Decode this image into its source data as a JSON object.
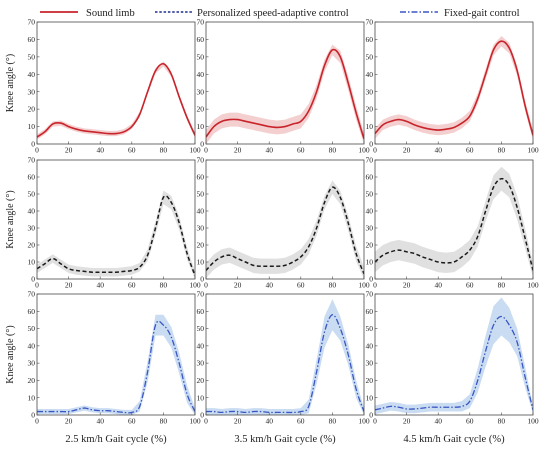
{
  "legend": {
    "sound": "Sound limb",
    "personalized": "Personalized speed-adaptive control",
    "fixed": "Fixed-gait control"
  },
  "colors": {
    "sound_line": "#c8242b",
    "sound_band": "#f4cfcf",
    "personalized_line": "#1a1a1a",
    "personalized_band": "#e0e0e0",
    "personalized_legend": "#1d2d8f",
    "fixed_line": "#3a56c4",
    "fixed_band": "#c9dcf2",
    "frame": "#4a4a4a"
  },
  "ylabel": "Knee angle (°)",
  "col_labels": [
    "2.5 km/h  Gait cycle (%)",
    "3.5 km/h  Gait cycle (%)",
    "4.5 km/h  Gait cycle (%)"
  ],
  "x_ticks": [
    "0",
    "20",
    "40",
    "60",
    "80",
    "100"
  ],
  "y_ticks": [
    "0",
    "10",
    "20",
    "30",
    "40",
    "50",
    "60",
    "70"
  ],
  "chart_data": [
    {
      "type": "line",
      "row": "sound",
      "speed": "2.5 km/h",
      "xlim": [
        0,
        100
      ],
      "ylim": [
        0,
        70
      ],
      "x": [
        0,
        5,
        10,
        15,
        20,
        25,
        30,
        35,
        40,
        45,
        50,
        55,
        60,
        65,
        70,
        75,
        80,
        85,
        90,
        95,
        100
      ],
      "y": [
        4,
        7,
        11.5,
        12,
        10,
        8.5,
        7.5,
        7,
        6.5,
        6,
        6,
        7,
        10,
        17,
        30,
        42,
        46,
        40,
        27,
        15,
        5
      ],
      "sd": [
        1.5,
        1.5,
        1.5,
        1.5,
        1.5,
        1.5,
        1.5,
        1.5,
        1.5,
        1.5,
        1.5,
        1.5,
        1.5,
        1.5,
        1.5,
        1.5,
        1.5,
        1.5,
        1.5,
        1.5,
        1.5
      ]
    },
    {
      "type": "line",
      "row": "sound",
      "speed": "3.5 km/h",
      "xlim": [
        0,
        100
      ],
      "ylim": [
        0,
        70
      ],
      "x": [
        0,
        5,
        10,
        15,
        20,
        25,
        30,
        35,
        40,
        45,
        50,
        55,
        60,
        65,
        70,
        75,
        80,
        85,
        90,
        95,
        100
      ],
      "y": [
        4,
        10,
        13,
        14,
        14,
        13,
        12,
        11,
        10,
        9.5,
        10,
        11.5,
        13,
        19,
        30,
        45,
        54,
        50,
        35,
        18,
        3
      ],
      "sd": [
        4,
        4,
        4,
        4,
        4,
        4,
        4,
        4,
        4,
        4,
        4,
        4,
        4,
        4,
        4,
        3.5,
        3,
        3.5,
        4,
        4,
        3
      ]
    },
    {
      "type": "line",
      "row": "sound",
      "speed": "4.5 km/h",
      "xlim": [
        0,
        100
      ],
      "ylim": [
        0,
        70
      ],
      "x": [
        0,
        5,
        10,
        15,
        20,
        25,
        30,
        35,
        40,
        45,
        50,
        55,
        60,
        65,
        70,
        75,
        80,
        85,
        90,
        95,
        100
      ],
      "y": [
        6,
        11,
        13,
        14,
        13,
        11,
        9.5,
        8.5,
        8,
        8.5,
        9.5,
        12,
        16,
        26,
        40,
        54,
        59,
        55,
        42,
        22,
        5
      ],
      "sd": [
        3,
        3,
        3,
        3,
        3,
        3,
        3,
        3,
        3,
        3,
        3,
        3,
        3,
        3,
        3,
        3,
        3,
        3,
        3,
        3,
        3
      ]
    },
    {
      "type": "line",
      "row": "personalized",
      "speed": "2.5 km/h",
      "xlim": [
        0,
        100
      ],
      "ylim": [
        0,
        70
      ],
      "x": [
        0,
        5,
        10,
        15,
        20,
        25,
        30,
        35,
        40,
        45,
        50,
        55,
        60,
        65,
        70,
        75,
        80,
        85,
        90,
        95,
        100
      ],
      "y": [
        6,
        9,
        12,
        9,
        6,
        5,
        4.5,
        4,
        4,
        4,
        4,
        4.5,
        5,
        7,
        14,
        30,
        48,
        45,
        33,
        15,
        2
      ],
      "sd": [
        2.5,
        2.5,
        2.5,
        2.5,
        2.5,
        2.5,
        2.5,
        2.5,
        2.5,
        2.5,
        2.5,
        2.5,
        2.5,
        2.5,
        3.5,
        4,
        4,
        4,
        4,
        3.5,
        2.5
      ]
    },
    {
      "type": "line",
      "row": "personalized",
      "speed": "3.5 km/h",
      "xlim": [
        0,
        100
      ],
      "ylim": [
        0,
        70
      ],
      "x": [
        0,
        5,
        10,
        15,
        20,
        25,
        30,
        35,
        40,
        45,
        50,
        55,
        60,
        65,
        70,
        75,
        80,
        85,
        90,
        95,
        100
      ],
      "y": [
        5,
        10,
        13,
        14,
        12,
        10,
        8,
        7.5,
        7.5,
        7.5,
        8,
        10,
        13,
        19,
        30,
        45,
        54,
        48,
        33,
        15,
        3
      ],
      "sd": [
        4.5,
        4.5,
        4.5,
        4.5,
        4.5,
        4.5,
        4.5,
        4.5,
        4.5,
        4.5,
        4.5,
        4.5,
        4.5,
        4.5,
        4.5,
        4,
        4,
        4,
        4.5,
        4.5,
        4
      ]
    },
    {
      "type": "line",
      "row": "personalized",
      "speed": "4.5 km/h",
      "xlim": [
        0,
        100
      ],
      "ylim": [
        0,
        70
      ],
      "x": [
        0,
        5,
        10,
        15,
        20,
        25,
        30,
        35,
        40,
        45,
        50,
        55,
        60,
        65,
        70,
        75,
        80,
        85,
        90,
        95,
        100
      ],
      "y": [
        10,
        14,
        16,
        17,
        16,
        15,
        13,
        11.5,
        10,
        9.5,
        10,
        13,
        17,
        25,
        40,
        54,
        59,
        55,
        42,
        24,
        5
      ],
      "sd": [
        6,
        6,
        6,
        6,
        6,
        6,
        6,
        6,
        6,
        6,
        6,
        6,
        6,
        6,
        6,
        7,
        7,
        7,
        7,
        6,
        4
      ]
    },
    {
      "type": "line",
      "row": "fixed",
      "speed": "2.5 km/h",
      "xlim": [
        0,
        100
      ],
      "ylim": [
        0,
        70
      ],
      "x": [
        0,
        5,
        10,
        15,
        20,
        25,
        30,
        35,
        40,
        45,
        50,
        55,
        60,
        65,
        70,
        75,
        80,
        85,
        90,
        95,
        100
      ],
      "y": [
        2,
        2,
        2,
        2,
        2,
        3,
        4,
        3,
        2.5,
        2.5,
        2,
        1.5,
        1.5,
        5,
        25,
        52,
        52,
        45,
        30,
        12,
        2
      ],
      "sd": [
        1.5,
        1.5,
        1.5,
        1.5,
        1.5,
        1.5,
        1.5,
        1.5,
        1.5,
        1.5,
        1.5,
        1.5,
        1.5,
        3,
        6,
        6,
        6,
        6,
        6,
        5,
        2
      ]
    },
    {
      "type": "line",
      "row": "fixed",
      "speed": "3.5 km/h",
      "xlim": [
        0,
        100
      ],
      "ylim": [
        0,
        70
      ],
      "x": [
        0,
        5,
        10,
        15,
        20,
        25,
        30,
        35,
        40,
        45,
        50,
        55,
        60,
        65,
        70,
        75,
        80,
        85,
        90,
        95,
        100
      ],
      "y": [
        2,
        2,
        1.5,
        2,
        2,
        1.5,
        2,
        2,
        1.5,
        1.5,
        1.5,
        1.5,
        2,
        5,
        25,
        48,
        58,
        50,
        35,
        15,
        2
      ],
      "sd": [
        2,
        2,
        2,
        2,
        2,
        2,
        2,
        2,
        2,
        2,
        2,
        2,
        2,
        4,
        7,
        9,
        9,
        7,
        6,
        5,
        2
      ]
    },
    {
      "type": "line",
      "row": "fixed",
      "speed": "4.5 km/h",
      "xlim": [
        0,
        100
      ],
      "ylim": [
        0,
        70
      ],
      "x": [
        0,
        5,
        10,
        15,
        20,
        25,
        30,
        35,
        40,
        45,
        50,
        55,
        60,
        65,
        70,
        75,
        80,
        85,
        90,
        95,
        100
      ],
      "y": [
        3,
        4,
        5,
        4.5,
        3.5,
        3.5,
        4,
        4.5,
        4.5,
        4.5,
        4.5,
        5,
        8,
        20,
        37,
        52,
        57,
        52,
        42,
        22,
        3
      ],
      "sd": [
        2.5,
        2.5,
        2.5,
        2.5,
        2.5,
        2.5,
        2.5,
        2.5,
        2.5,
        2.5,
        2.5,
        3,
        4,
        7,
        9,
        11,
        11,
        10,
        8,
        6,
        2
      ]
    }
  ]
}
